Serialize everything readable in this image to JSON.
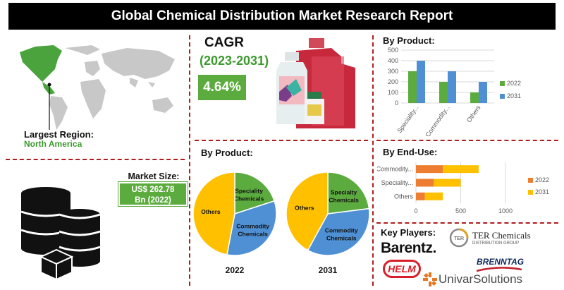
{
  "title": "Global Chemical Distribution Market Research Report",
  "region": {
    "label": "Largest Region:",
    "value": "North America"
  },
  "market_size": {
    "label": "Market Size:",
    "value_line1": "US$ 262.78",
    "value_line2": "Bn (2022)"
  },
  "cagr": {
    "label": "CAGR",
    "period": "(2023-2031)",
    "value": "4.64%"
  },
  "pies_title": "By Product:",
  "key_players": {
    "label": "Key Players:",
    "names": [
      "Barentz.",
      "TER Chemicals",
      "DISTRIBUTION GROUP",
      "BRENNTAG",
      "HELM",
      "UnivarSolutions"
    ]
  },
  "colors": {
    "green": "#5cab3f",
    "blue": "#4f90d4",
    "yellow": "#ffc000",
    "orange": "#ed7d31",
    "red": "#b11d1d"
  },
  "chart_data": [
    {
      "type": "bar",
      "title": "By Product:",
      "categories": [
        "Speciality...",
        "Commodity...",
        "Others"
      ],
      "series": [
        {
          "name": "2022",
          "values": [
            300,
            200,
            100
          ]
        },
        {
          "name": "2031",
          "values": [
            400,
            300,
            200
          ]
        }
      ],
      "ylim": [
        0,
        500
      ],
      "yticks": [
        "0",
        "100",
        "200",
        "300",
        "400",
        "500"
      ],
      "legend": "right",
      "grid": true
    },
    {
      "type": "bar",
      "orientation": "horizontal",
      "stacked": true,
      "title": "By End-Use:",
      "categories": [
        "Commodity...",
        "Speciality...",
        "Others"
      ],
      "series": [
        {
          "name": "2022",
          "values": [
            300,
            200,
            100
          ]
        },
        {
          "name": "2031",
          "values": [
            400,
            300,
            200
          ]
        }
      ],
      "xlim": [
        0,
        1000
      ],
      "xticks": [
        "0",
        "500",
        "1000"
      ],
      "legend": "right",
      "grid": true
    },
    {
      "type": "pie",
      "title": "2022",
      "labels": [
        "Speciality Chemicals",
        "Commodity Chemicals",
        "Others"
      ],
      "values": [
        20,
        33,
        47
      ]
    },
    {
      "type": "pie",
      "title": "2031",
      "labels": [
        "Specialty Chemicals",
        "Commodity Chemicals",
        "Others"
      ],
      "values": [
        23,
        35,
        42
      ]
    }
  ]
}
